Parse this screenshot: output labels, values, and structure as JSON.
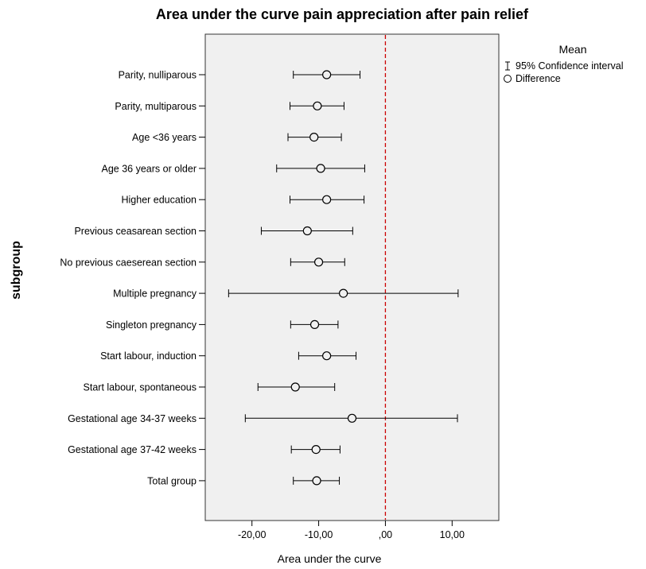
{
  "chart_data": {
    "type": "scatter",
    "title": "Area under the curve pain appreciation after pain relief",
    "xlabel": "Area under the curve",
    "ylabel": "subgroup",
    "xlim": [
      -27,
      17
    ],
    "x_ticks": [
      -20,
      -10,
      0,
      10
    ],
    "x_tick_labels": [
      "-20,00",
      "-10,00",
      ",00",
      "10,00"
    ],
    "reference_line": {
      "x": 0,
      "color": "#cc0000",
      "style": "dashed"
    },
    "grid": false,
    "background_color": "#f0f0f0",
    "legend": {
      "title": "Mean",
      "placement": "right",
      "entries": [
        {
          "symbol": "errorbar",
          "label": "95% Confidence interval"
        },
        {
          "symbol": "circle",
          "label": "Difference"
        }
      ]
    },
    "categories": [
      "Parity, nulliparous",
      "Parity, multiparous",
      "Age <36 years",
      "Age 36 years or older",
      "Higher education",
      "Previous ceasarean section",
      "No previous caeserean section",
      "Multiple pregnancy",
      "Singleton pregnancy",
      "Start labour, induction",
      "Start labour, spontaneous",
      "Gestational age 34-37 weeks",
      "Gestational age 37-42 weeks",
      "Total group"
    ],
    "mean": [
      -8.8,
      -10.2,
      -10.7,
      -9.7,
      -8.8,
      -11.7,
      -10.0,
      -6.3,
      -10.6,
      -8.8,
      -13.5,
      -5.0,
      -10.4,
      -10.3
    ],
    "ci_lower": [
      -13.8,
      -14.3,
      -14.6,
      -16.3,
      -14.3,
      -18.6,
      -14.2,
      -23.5,
      -14.2,
      -13.0,
      -19.1,
      -21.0,
      -14.1,
      -13.8
    ],
    "ci_upper": [
      -3.8,
      -6.2,
      -6.6,
      -3.1,
      -3.2,
      -4.9,
      -6.1,
      10.9,
      -7.1,
      -4.4,
      -7.6,
      10.8,
      -6.8,
      -6.9
    ]
  }
}
